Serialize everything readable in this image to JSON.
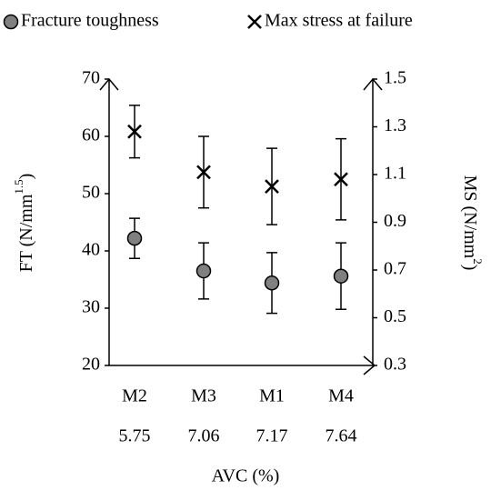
{
  "chart_data": {
    "type": "scatter",
    "legend": "top",
    "categories": [
      "M2",
      "M3",
      "M1",
      "M4"
    ],
    "avc": [
      5.75,
      7.06,
      7.17,
      7.64
    ],
    "xlabel": "AVC (%)",
    "ylabel_parts": [
      "FT (N/mm",
      "1.5",
      ")"
    ],
    "y2label_parts": [
      "MS (N/mm",
      "2",
      ")"
    ],
    "ylim": [
      20,
      70
    ],
    "yticks": [
      20,
      30,
      40,
      50,
      60,
      70
    ],
    "y2lim": [
      0.3,
      1.5
    ],
    "y2ticks": [
      0.3,
      0.5,
      0.7,
      0.9,
      1.1,
      1.3,
      1.5
    ],
    "grid": false,
    "series": [
      {
        "name": "Fracture toughness",
        "marker": "circle",
        "color": "#808080",
        "values": [
          42.2,
          36.5,
          34.4,
          35.6
        ],
        "errors": [
          3.5,
          4.9,
          5.3,
          5.8
        ]
      },
      {
        "name": "Max stress at failure",
        "marker": "x",
        "axis": "y2",
        "color": "#000000",
        "values": [
          1.28,
          1.11,
          1.05,
          1.08
        ],
        "errors": [
          0.11,
          0.15,
          0.16,
          0.17
        ]
      }
    ]
  }
}
